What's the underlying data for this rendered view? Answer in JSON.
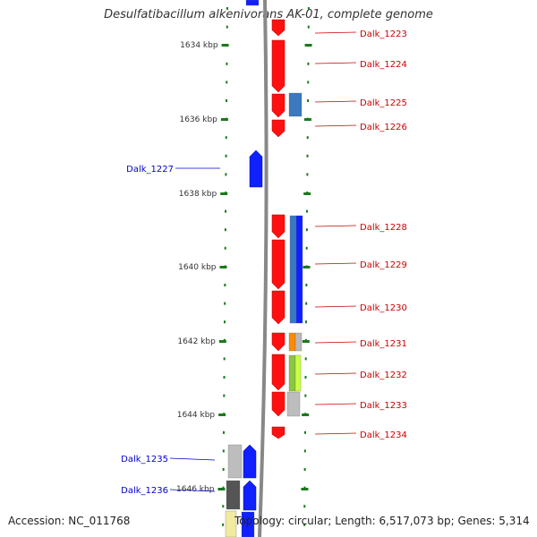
{
  "title": "Desulfatibacillum alkenivorans AK-01, complete genome",
  "footer": {
    "accession": "Accession: NC_011768",
    "summary": "Topology: circular; Length: 6,517,073 bp; Genes: 5,314"
  },
  "colors": {
    "forward_gene": "#ff1010",
    "reverse_gene": "#1020ff",
    "backbone": "#888888",
    "tick": "#1a7a1a",
    "right_label": "#cc0000",
    "left_label": "#0000cc"
  },
  "scale": {
    "unit": "kbp",
    "ticks": [
      {
        "label": "1634 kbp"
      },
      {
        "label": "1636 kbp"
      },
      {
        "label": "1638 kbp"
      },
      {
        "label": "1640 kbp"
      },
      {
        "label": "1642 kbp"
      },
      {
        "label": "1644 kbp"
      },
      {
        "label": "1646 kbp"
      }
    ]
  },
  "genes": [
    {
      "name": "Dalk_1223",
      "strand": "+"
    },
    {
      "name": "Dalk_1224",
      "strand": "+"
    },
    {
      "name": "Dalk_1225",
      "strand": "+"
    },
    {
      "name": "Dalk_1226",
      "strand": "+"
    },
    {
      "name": "Dalk_1227",
      "strand": "-"
    },
    {
      "name": "Dalk_1228",
      "strand": "+"
    },
    {
      "name": "Dalk_1229",
      "strand": "+"
    },
    {
      "name": "Dalk_1230",
      "strand": "+"
    },
    {
      "name": "Dalk_1231",
      "strand": "+"
    },
    {
      "name": "Dalk_1232",
      "strand": "+"
    },
    {
      "name": "Dalk_1233",
      "strand": "+"
    },
    {
      "name": "Dalk_1234",
      "strand": "+"
    },
    {
      "name": "Dalk_1235",
      "strand": "-"
    },
    {
      "name": "Dalk_1236",
      "strand": "-"
    }
  ]
}
